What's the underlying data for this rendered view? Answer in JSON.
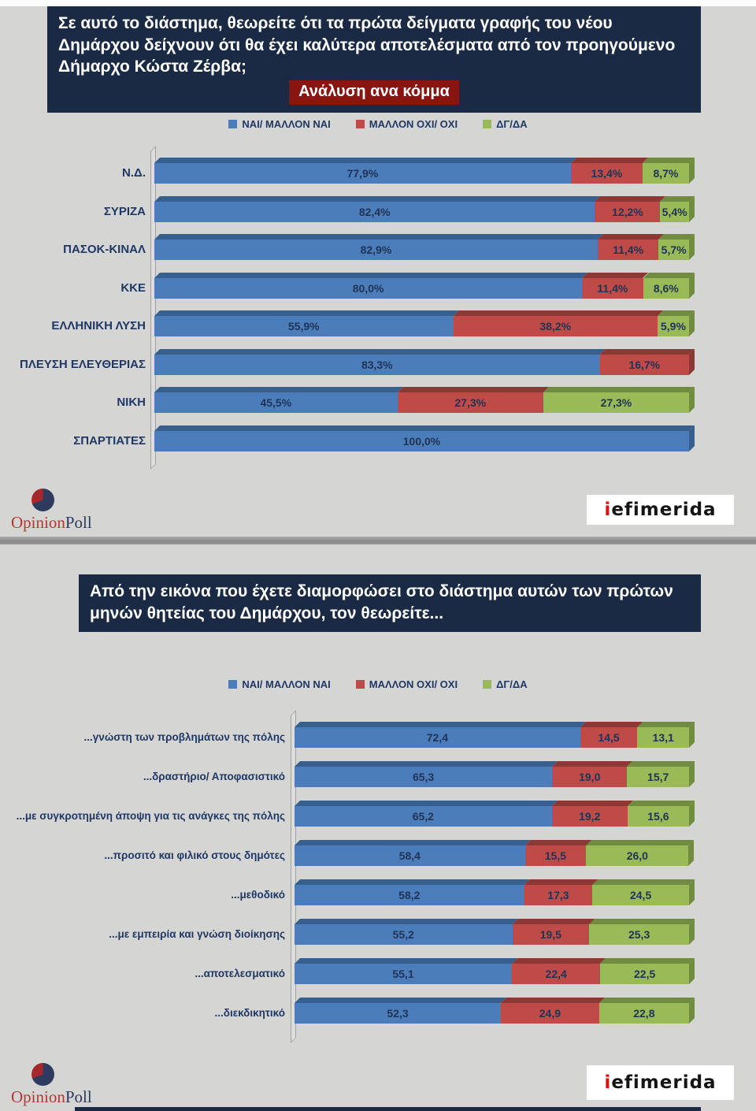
{
  "colors": {
    "yes_blue": "#4c7dbb",
    "no_red": "#be4b48",
    "dk_green": "#9aba58",
    "title_navy": "#1b2a44",
    "badge_red": "#8a1410",
    "label_text": "#1f3864",
    "background": "#d5d5d4"
  },
  "section1": {
    "title": "Σε αυτό το διάστημα, θεωρείτε ότι τα πρώτα δείγματα γραφής του νέου Δημάρχου δείχνουν ότι θα έχει καλύτερα αποτελέσματα από τον προηγούμενο Δήμαρχο Κώστα Ζέρβα;",
    "subtitle": "Ανάλυση ανα κόμμα"
  },
  "section2": {
    "title": "Από την εικόνα που έχετε διαμορφώσει στο διάστημα αυτών των πρώτων μηνών θητείας του Δημάρχου, τον θεωρείτε..."
  },
  "legend": [
    "ΝΑΙ/ ΜΑΛΛΟΝ ΝΑΙ",
    "ΜΑΛΛΟΝ ΟΧΙ/ ΟΧΙ",
    "ΔΓ/ΔΑ"
  ],
  "logos": {
    "opinionpoll": {
      "part1": "Opinion",
      "part2": "Poll"
    },
    "iefimerida": {
      "part1": "i",
      "part2": "efimerida"
    }
  },
  "chart_data": [
    {
      "type": "bar",
      "orientation": "horizontal",
      "stacked": true,
      "title": "Σε αυτό το διάστημα, θεωρείτε ότι τα πρώτα δείγματα γραφής του νέου Δημάρχου δείχνουν ότι θα έχει καλύτερα αποτελέσματα από τον προηγούμενο Δήμαρχο Κώστα Ζέρβα;",
      "subtitle": "Ανάλυση ανα κόμμα",
      "legend_position": "top",
      "xlim": [
        0,
        100
      ],
      "value_suffix": "%",
      "decimal_separator": ",",
      "categories": [
        "Ν.Δ.",
        "ΣΥΡΙΖΑ",
        "ΠΑΣΟΚ-ΚΙΝΑΛ",
        "ΚΚΕ",
        "ΕΛΛΗΝΙΚΗ ΛΥΣΗ",
        "ΠΛΕΥΣΗ ΕΛΕΥΘΕΡΙΑΣ",
        "ΝΙΚΗ",
        "ΣΠΑΡΤΙΑΤΕΣ"
      ],
      "series": [
        {
          "name": "ΝΑΙ/ ΜΑΛΛΟΝ ΝΑΙ",
          "color": "#4c7dbb",
          "values": [
            77.9,
            82.4,
            82.9,
            80.0,
            55.9,
            83.3,
            45.5,
            100.0
          ]
        },
        {
          "name": "ΜΑΛΛΟΝ ΟΧΙ/ ΟΧΙ",
          "color": "#be4b48",
          "values": [
            13.4,
            12.2,
            11.4,
            11.4,
            38.2,
            16.7,
            27.3,
            0
          ]
        },
        {
          "name": "ΔΓ/ΔΑ",
          "color": "#9aba58",
          "values": [
            8.7,
            5.4,
            5.7,
            8.6,
            5.9,
            0,
            27.3,
            0
          ]
        }
      ]
    },
    {
      "type": "bar",
      "orientation": "horizontal",
      "stacked": true,
      "title": "Από την εικόνα που έχετε διαμορφώσει στο διάστημα αυτών των πρώτων μηνών θητείας του Δημάρχου, τον θεωρείτε...",
      "legend_position": "top",
      "xlim": [
        0,
        100
      ],
      "value_suffix": "",
      "decimal_separator": ",",
      "categories": [
        "...γνώστη των προβλημάτων της πόλης",
        "...δραστήριο/ Αποφασιστικό",
        "...με συγκροτημένη άποψη για τις ανάγκες της πόλης",
        "...προσιτό και φιλικό στους δημότες",
        "...μεθοδικό",
        "...με εμπειρία και γνώση διοίκησης",
        "...αποτελεσματικό",
        "...διεκδικητικό"
      ],
      "series": [
        {
          "name": "ΝΑΙ/ ΜΑΛΛΟΝ ΝΑΙ",
          "color": "#4c7dbb",
          "values": [
            72.4,
            65.3,
            65.2,
            58.4,
            58.2,
            55.2,
            55.1,
            52.3
          ]
        },
        {
          "name": "ΜΑΛΛΟΝ ΟΧΙ/ ΟΧΙ",
          "color": "#be4b48",
          "values": [
            14.5,
            19.0,
            19.2,
            15.5,
            17.3,
            19.5,
            22.4,
            24.9
          ]
        },
        {
          "name": "ΔΓ/ΔΑ",
          "color": "#9aba58",
          "values": [
            13.1,
            15.7,
            15.6,
            26.0,
            24.5,
            25.3,
            22.5,
            22.8
          ]
        }
      ]
    }
  ]
}
